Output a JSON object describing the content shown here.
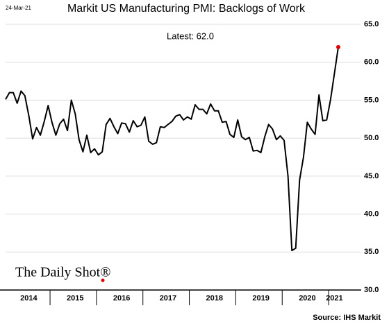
{
  "chart_data": {
    "type": "line",
    "title": "Markit US Manufacturing PMI: Backlogs of Work",
    "date": "24-Mar-21",
    "annotation": "Latest:  62.0",
    "source": "Source: IHS Markit",
    "logo": "The Daily Shot®",
    "categories": [
      null,
      null,
      null,
      null,
      null,
      null,
      "2014",
      null,
      null,
      null,
      null,
      null,
      null,
      null,
      null,
      null,
      null,
      null,
      "2015",
      null,
      null,
      null,
      null,
      null,
      null,
      null,
      null,
      null,
      null,
      null,
      "2016",
      null,
      null,
      null,
      null,
      null,
      null,
      null,
      null,
      null,
      null,
      null,
      "2017",
      null,
      null,
      null,
      null,
      null,
      null,
      null,
      null,
      null,
      null,
      null,
      "2018",
      null,
      null,
      null,
      null,
      null,
      null,
      null,
      null,
      null,
      null,
      null,
      "2019",
      null,
      null,
      null,
      null,
      null,
      null,
      null,
      null,
      null,
      null,
      null,
      "2020",
      null,
      null,
      null,
      null,
      null,
      null,
      "2021",
      null
    ],
    "series": [
      {
        "name": "Backlogs of Work",
        "color": "#000000",
        "latest_color": "#e00000",
        "values": [
          55.1,
          56,
          56,
          54.6,
          56.2,
          55.6,
          53,
          49.9,
          51.4,
          50.4,
          52.2,
          54.3,
          52.1,
          50.4,
          51.9,
          52.5,
          51,
          55,
          53.2,
          49.8,
          48.2,
          50.4,
          48.1,
          48.6,
          47.8,
          48.2,
          51.8,
          52.6,
          51.5,
          50.6,
          52,
          51.9,
          50.8,
          52.3,
          51.5,
          51.7,
          52.8,
          49.6,
          49.2,
          49.4,
          51.5,
          51.4,
          51.8,
          52.2,
          52.9,
          53.1,
          52.4,
          52.8,
          52.5,
          54.4,
          53.8,
          53.8,
          53.2,
          54.5,
          53.6,
          53.6,
          52.1,
          52.2,
          50.5,
          50.1,
          52.4,
          50.2,
          49.8,
          50.1,
          48.3,
          48.4,
          48.1,
          50.2,
          51.8,
          51.2,
          49.8,
          50.3,
          49.7,
          45,
          35.2,
          35.5,
          44.5,
          47.5,
          52.1,
          51.2,
          50.5,
          55.7,
          52.3,
          52.4,
          55.1,
          58.5,
          62.0
        ]
      }
    ],
    "ylim": [
      30,
      65
    ],
    "yticks": [
      {
        "value": 30,
        "label": "30.0"
      },
      {
        "value": 35,
        "label": "35.0"
      },
      {
        "value": 40,
        "label": "40.0"
      },
      {
        "value": 45,
        "label": "45.0"
      },
      {
        "value": 50,
        "label": "50.0"
      },
      {
        "value": 55,
        "label": "55.0"
      },
      {
        "value": 60,
        "label": "60.0"
      },
      {
        "value": 65,
        "label": "65.0"
      }
    ],
    "grid": true
  }
}
